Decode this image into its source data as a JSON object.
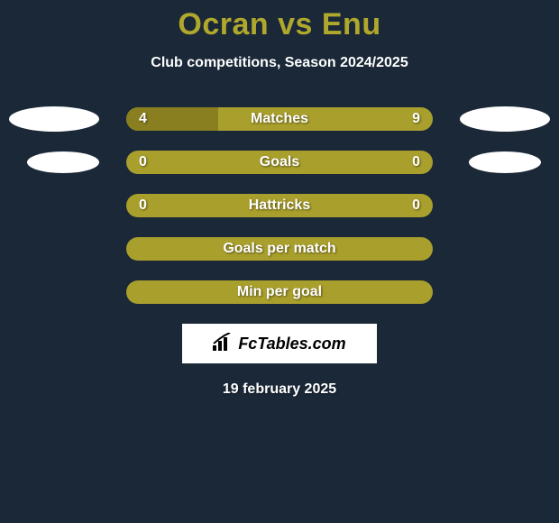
{
  "title": "Ocran vs Enu",
  "subtitle": "Club competitions, Season 2024/2025",
  "colors": {
    "background": "#1a2838",
    "title_color": "#b0a82c",
    "text_color": "#ffffff",
    "bar_bg": "#a99f2c",
    "bar_fill": "#8a7f20",
    "avatar_bg": "#ffffff"
  },
  "stats": [
    {
      "label": "Matches",
      "left_value": "4",
      "right_value": "9",
      "left_fill_pct": 30,
      "right_fill_pct": 0,
      "show_left_avatar": true,
      "show_right_avatar": true,
      "avatar_size": "large"
    },
    {
      "label": "Goals",
      "left_value": "0",
      "right_value": "0",
      "left_fill_pct": 0,
      "right_fill_pct": 0,
      "show_left_avatar": true,
      "show_right_avatar": true,
      "avatar_size": "small"
    },
    {
      "label": "Hattricks",
      "left_value": "0",
      "right_value": "0",
      "left_fill_pct": 0,
      "right_fill_pct": 0,
      "show_left_avatar": false,
      "show_right_avatar": false
    },
    {
      "label": "Goals per match",
      "left_value": "",
      "right_value": "",
      "left_fill_pct": 0,
      "right_fill_pct": 0,
      "show_left_avatar": false,
      "show_right_avatar": false
    },
    {
      "label": "Min per goal",
      "left_value": "",
      "right_value": "",
      "left_fill_pct": 0,
      "right_fill_pct": 0,
      "show_left_avatar": false,
      "show_right_avatar": false
    }
  ],
  "logo": {
    "text": "FcTables.com"
  },
  "date": "19 february 2025"
}
